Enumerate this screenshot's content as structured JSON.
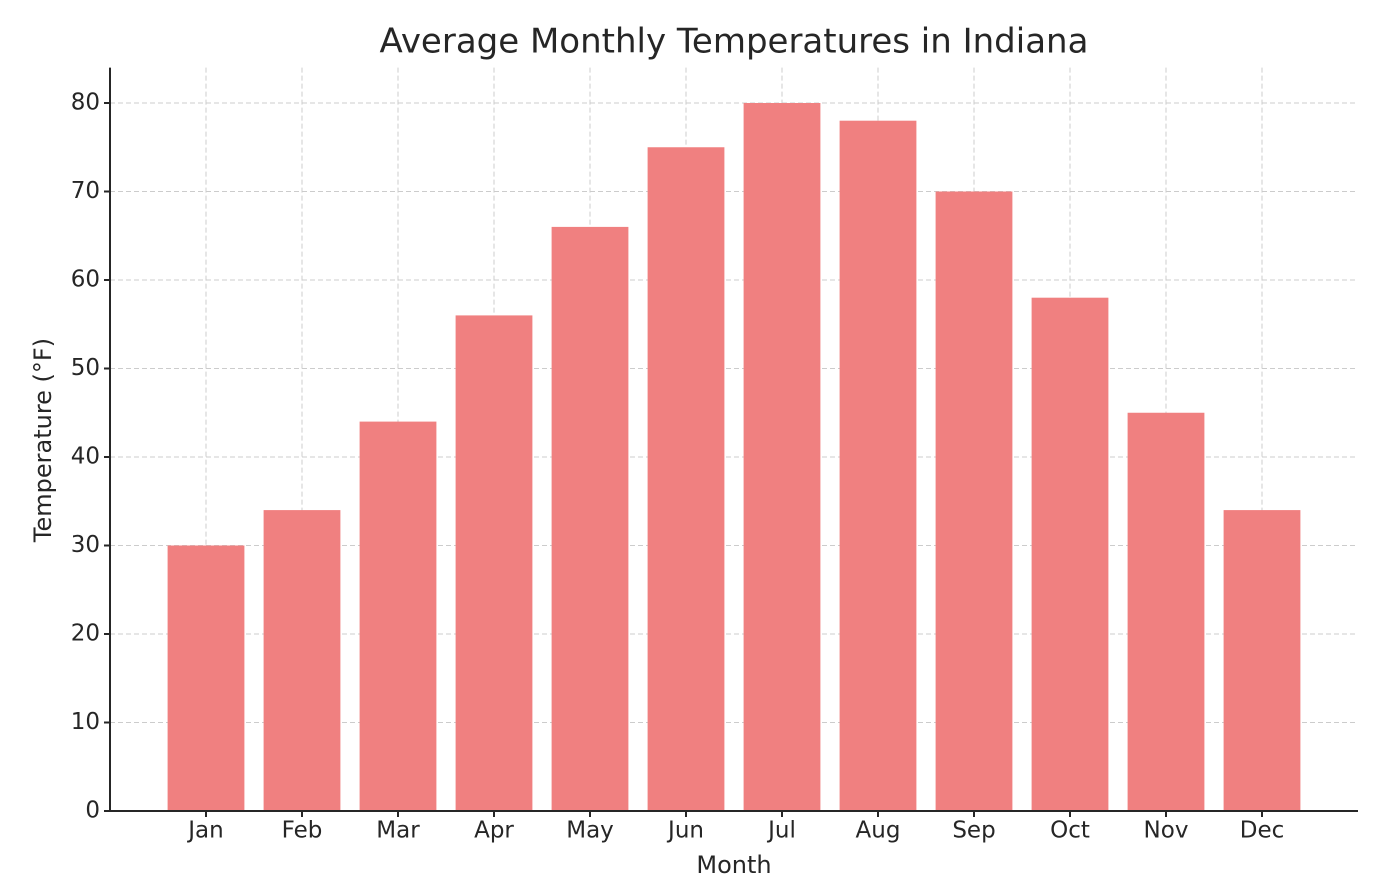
{
  "chart_data": {
    "type": "bar",
    "title": "Average Monthly Temperatures in Indiana",
    "x_label": "Month",
    "y_label": "Temperature (°F)",
    "categories": [
      "Jan",
      "Feb",
      "Mar",
      "Apr",
      "May",
      "Jun",
      "Jul",
      "Aug",
      "Sep",
      "Oct",
      "Nov",
      "Dec"
    ],
    "values": [
      30,
      34,
      44,
      56,
      66,
      75,
      80,
      78,
      70,
      58,
      45,
      34
    ],
    "color": "#f08080",
    "ylim": [
      0,
      84
    ],
    "yticks": [
      0,
      10,
      20,
      30,
      40,
      50,
      60,
      70,
      80
    ],
    "grid": true
  }
}
